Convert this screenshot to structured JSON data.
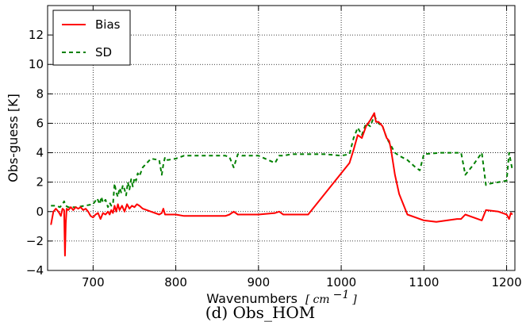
{
  "chart_data": {
    "type": "line",
    "xlabel": "Wavenumbers",
    "xlabel_unit_open": "[",
    "xlabel_unit": "cm",
    "xlabel_unit_exp": "−1",
    "xlabel_unit_close": "]",
    "ylabel": "Obs-guess [K]",
    "caption": "(d) Obs_HOM",
    "xlim": [
      645,
      1210
    ],
    "ylim": [
      -4,
      14
    ],
    "xticks": [
      700,
      800,
      900,
      1000,
      1100,
      1200
    ],
    "yticks": [
      -4,
      -2,
      0,
      2,
      4,
      6,
      8,
      10,
      12
    ],
    "grid": true,
    "legend_position": "top-left",
    "series": [
      {
        "name": "Bias",
        "color": "#ff0000",
        "style": "solid",
        "x": [
          649,
          652,
          655,
          658,
          661,
          663,
          665,
          666,
          667,
          668,
          670,
          673,
          676,
          679,
          682,
          685,
          688,
          691,
          694,
          697,
          700,
          703,
          706,
          709,
          712,
          715,
          718,
          720,
          722,
          724,
          726,
          728,
          730,
          732,
          735,
          738,
          741,
          744,
          747,
          750,
          753,
          756,
          760,
          770,
          780,
          783,
          785,
          787,
          790,
          800,
          810,
          830,
          860,
          865,
          870,
          875,
          880,
          900,
          920,
          925,
          930,
          940,
          960,
          1010,
          1015,
          1020,
          1025,
          1030,
          1035,
          1040,
          1042,
          1045,
          1050,
          1055,
          1058,
          1060,
          1065,
          1070,
          1080,
          1095,
          1100,
          1115,
          1140,
          1145,
          1150,
          1165,
          1170,
          1175,
          1190,
          1200,
          1203,
          1205,
          1207
        ],
        "y": [
          -0.9,
          0.0,
          0.2,
          0.0,
          -0.3,
          0.2,
          0.1,
          -3.0,
          -0.8,
          0.2,
          0.1,
          0.3,
          0.1,
          0.3,
          0.2,
          0.3,
          0.1,
          0.2,
          0.0,
          -0.3,
          -0.4,
          -0.2,
          -0.1,
          -0.5,
          -0.1,
          -0.2,
          0.0,
          -0.2,
          0.1,
          -0.1,
          0.4,
          0.0,
          0.5,
          0.1,
          0.4,
          0.0,
          0.5,
          0.2,
          0.4,
          0.3,
          0.5,
          0.4,
          0.2,
          0.0,
          -0.2,
          -0.1,
          0.2,
          -0.2,
          -0.2,
          -0.2,
          -0.3,
          -0.3,
          -0.3,
          -0.2,
          0.0,
          -0.2,
          -0.2,
          -0.2,
          -0.1,
          0.0,
          -0.2,
          -0.2,
          -0.2,
          3.3,
          4.2,
          5.2,
          5.0,
          5.8,
          6.2,
          6.7,
          6.1,
          6.1,
          5.8,
          5.0,
          4.8,
          4.3,
          2.5,
          1.2,
          -0.2,
          -0.5,
          -0.6,
          -0.7,
          -0.5,
          -0.5,
          -0.2,
          -0.5,
          -0.6,
          0.1,
          0.0,
          -0.2,
          -0.5,
          -0.1,
          -0.2
        ]
      },
      {
        "name": "SD",
        "color": "#008000",
        "style": "dashed",
        "x": [
          649,
          655,
          660,
          663,
          665,
          667,
          670,
          675,
          680,
          690,
          700,
          705,
          708,
          710,
          712,
          715,
          718,
          720,
          722,
          724,
          726,
          728,
          730,
          732,
          734,
          736,
          738,
          740,
          742,
          744,
          746,
          748,
          750,
          752,
          754,
          756,
          760,
          770,
          780,
          783,
          785,
          787,
          790,
          800,
          810,
          830,
          860,
          865,
          870,
          875,
          880,
          900,
          920,
          925,
          930,
          940,
          960,
          980,
          1000,
          1010,
          1015,
          1020,
          1025,
          1030,
          1035,
          1040,
          1045,
          1050,
          1055,
          1060,
          1065,
          1070,
          1080,
          1090,
          1095,
          1100,
          1120,
          1145,
          1150,
          1160,
          1170,
          1175,
          1180,
          1200,
          1203,
          1207
        ],
        "y": [
          0.4,
          0.4,
          0.3,
          0.5,
          0.7,
          0.4,
          0.3,
          0.3,
          0.3,
          0.4,
          0.5,
          0.9,
          0.5,
          1.0,
          0.6,
          0.8,
          0.3,
          0.6,
          0.4,
          0.5,
          1.9,
          1.3,
          1.0,
          1.6,
          1.3,
          1.8,
          1.5,
          1.1,
          2.0,
          1.5,
          2.2,
          1.7,
          2.3,
          2.1,
          2.6,
          2.4,
          3.0,
          3.6,
          3.5,
          2.5,
          3.2,
          3.7,
          3.5,
          3.6,
          3.8,
          3.8,
          3.8,
          3.7,
          3.0,
          3.9,
          3.8,
          3.8,
          3.3,
          3.8,
          3.8,
          3.9,
          3.9,
          3.9,
          3.8,
          3.9,
          5.0,
          5.7,
          5.2,
          6.0,
          5.8,
          6.5,
          6.0,
          5.8,
          5.0,
          4.5,
          4.0,
          3.8,
          3.5,
          3.0,
          2.8,
          3.9,
          4.0,
          4.0,
          2.5,
          3.2,
          4.0,
          1.8,
          1.9,
          2.1,
          4.0,
          2.8
        ]
      }
    ]
  }
}
